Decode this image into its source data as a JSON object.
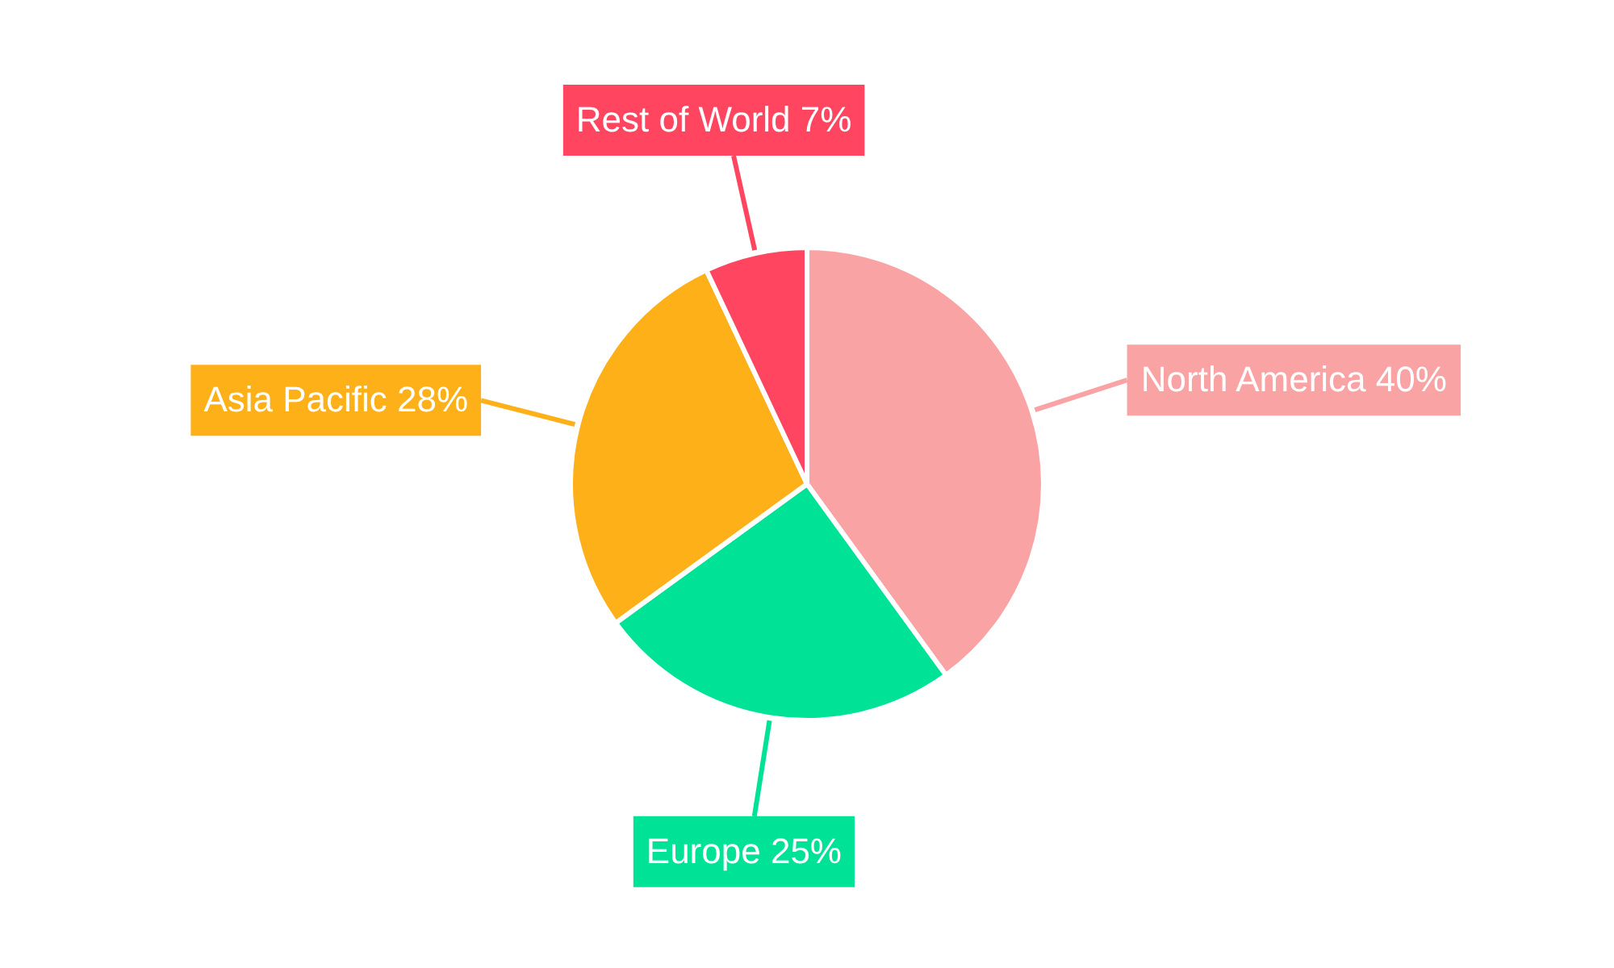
{
  "chart_data": {
    "type": "pie",
    "categories": [
      "North America",
      "Europe",
      "Asia Pacific",
      "Rest of World"
    ],
    "values": [
      40,
      25,
      28,
      7
    ],
    "value_labels": [
      "40%",
      "25%",
      "28%",
      "7%"
    ],
    "colors": [
      "#f9a3a4",
      "#00e396",
      "#feb019",
      "#ff4560"
    ],
    "legend": false
  }
}
